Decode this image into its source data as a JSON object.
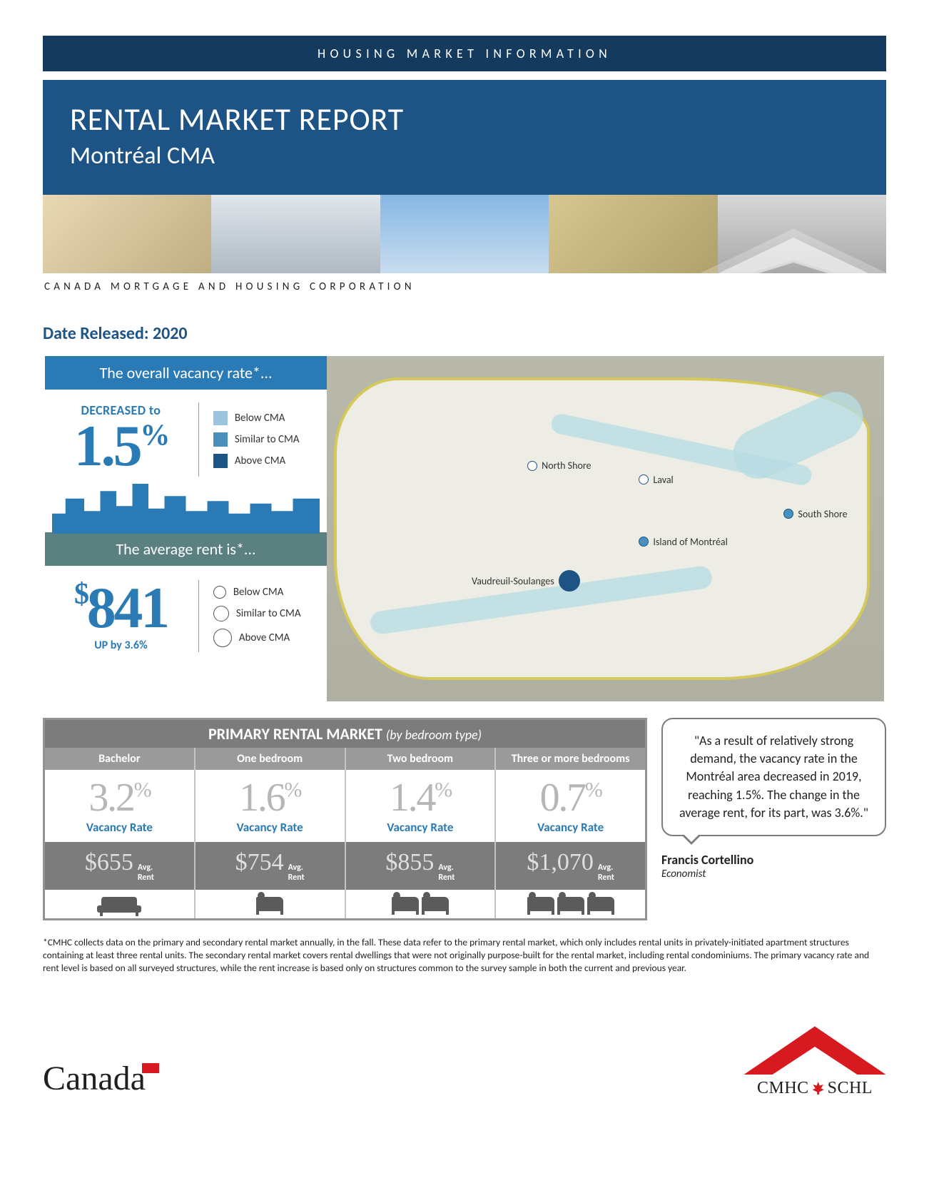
{
  "colors": {
    "banner_narrow_bg": "#143a5e",
    "banner_wide_bg": "#1e5385",
    "accent_blue": "#2a7bb5",
    "teal": "#5a8080",
    "grey": "#7c7c7c",
    "border_grey": "#939393",
    "map_outline": "#d4c95a",
    "red": "#d71920",
    "white": "#ffffff"
  },
  "header": {
    "kicker": "HOUSING MARKET INFORMATION",
    "title": "RENTAL MARKET REPORT",
    "subtitle": "Montréal CMA",
    "org_line": "CANADA MORTGAGE AND HOUSING CORPORATION"
  },
  "date_line": "Date Released: 2020",
  "vacancy_stat": {
    "heading": "The overall vacancy rate*...",
    "label": "DECREASED to",
    "value": "1.5",
    "unit": "%",
    "legend": [
      "Below CMA",
      "Similar to CMA",
      "Above CMA"
    ]
  },
  "rent_stat": {
    "heading": "The average rent is*...",
    "currency": "$",
    "value": "841",
    "sub": "UP by 3.6%",
    "legend": [
      "Below CMA",
      "Similar to CMA",
      "Above CMA"
    ]
  },
  "map": {
    "markers": [
      {
        "label": "North Shore",
        "x": 36,
        "y": 30,
        "dot": "light"
      },
      {
        "label": "Laval",
        "x": 56,
        "y": 34,
        "dot": "light"
      },
      {
        "label": "South Shore",
        "x": 82,
        "y": 44,
        "dot": "mid"
      },
      {
        "label": "Island of Montréal",
        "x": 56,
        "y": 52,
        "dot": "mid"
      },
      {
        "label": "Vaudreuil-Soulanges",
        "x": 26,
        "y": 62,
        "dot": "big"
      }
    ]
  },
  "prm": {
    "title": "PRIMARY RENTAL MARKET",
    "title_em": "(by bedroom type)",
    "columns": [
      {
        "head": "Bachelor",
        "vacancy": "3.2",
        "rent": "$655",
        "beds": 0
      },
      {
        "head": "One bedroom",
        "vacancy": "1.6",
        "rent": "$754",
        "beds": 1
      },
      {
        "head": "Two bedroom",
        "vacancy": "1.4",
        "rent": "$855",
        "beds": 2
      },
      {
        "head": "Three or more bedrooms",
        "vacancy": "0.7",
        "rent": "$1,070",
        "beds": 3
      }
    ],
    "vacancy_label": "Vacancy Rate",
    "rent_label_top": "Avg.",
    "rent_label_bot": "Rent"
  },
  "quote": {
    "text": "\"As a result of relatively strong demand, the vacancy rate in the Montréal area decreased in 2019, reaching 1.5%. The change in the average rent, for its part, was 3.6%.\"",
    "author": "Francis Cortellino",
    "title": "Economist"
  },
  "footnote": "*CMHC collects data on the primary and secondary rental market annually, in the fall. These data refer to the primary rental market, which only includes rental units in privately-initiated apartment structures containing at least three rental units. The secondary rental market covers rental dwellings that were not originally purpose-built for the rental market, including rental condominiums. The primary vacancy rate and rent level is based on all surveyed structures, while the rent increase is based only on structures common to the survey sample in both the current and previous year.",
  "logos": {
    "canada": "Canada",
    "cmhc_left": "CMHC",
    "cmhc_right": "SCHL"
  }
}
